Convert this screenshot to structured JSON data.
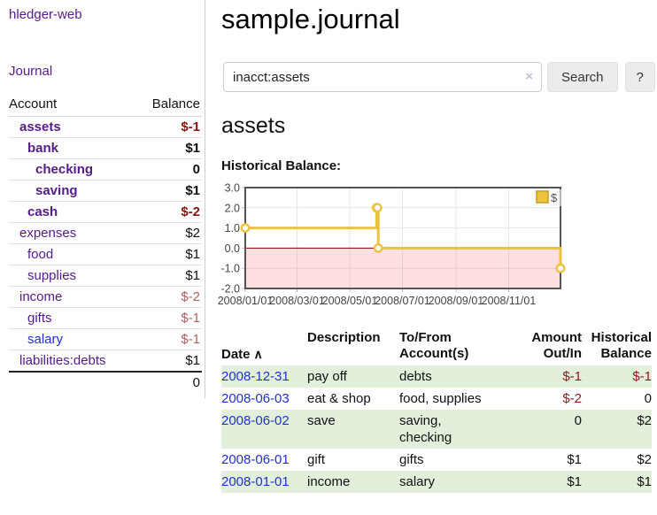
{
  "colors": {
    "accent_purple": "#551a8b",
    "link_blue": "#2230cf",
    "negative_strong": "#8b1515",
    "negative_soft": "#b26161",
    "row_stripe_green": "#e2efdb",
    "chart_line_yellow": "#edc240",
    "chart_negative_fill": "rgba(255,0,0,0.12)",
    "chart_zero_line": "#8b0000",
    "chart_border": "#545454"
  },
  "sidebar": {
    "brand": "hledger-web",
    "journal_link": "Journal",
    "accounts_table": {
      "headers": [
        "Account",
        "Balance"
      ],
      "rows": [
        {
          "name": "assets",
          "indent": 1,
          "bold": true,
          "balance": "$-1",
          "negative": "strong"
        },
        {
          "name": "bank",
          "indent": 2,
          "bold": true,
          "balance": "$1"
        },
        {
          "name": "checking",
          "indent": 3,
          "bold": true,
          "balance": "0"
        },
        {
          "name": "saving",
          "indent": 3,
          "bold": true,
          "balance": "$1"
        },
        {
          "name": "cash",
          "indent": 2,
          "bold": true,
          "balance": "$-2",
          "negative": "strong"
        },
        {
          "name": "expenses",
          "indent": 1,
          "bold": false,
          "balance": "$2"
        },
        {
          "name": "food",
          "indent": 2,
          "bold": false,
          "balance": "$1"
        },
        {
          "name": "supplies",
          "indent": 2,
          "bold": false,
          "balance": "$1"
        },
        {
          "name": "income",
          "indent": 1,
          "bold": false,
          "balance": "$-2",
          "negative": "soft"
        },
        {
          "name": "gifts",
          "indent": 2,
          "bold": false,
          "balance": "$-1",
          "negative": "soft"
        },
        {
          "name": "salary",
          "indent": 2,
          "bold": false,
          "balance": "$-1",
          "negative": "soft",
          "link_style": "unvisited"
        },
        {
          "name": "liabilities:debts",
          "indent": 1,
          "bold": false,
          "balance": "$1"
        }
      ],
      "total": "0"
    }
  },
  "header": {
    "title": "sample.journal"
  },
  "search": {
    "query": "inacct:assets",
    "clear_icon": "×",
    "search_button": "Search",
    "help_button": "?"
  },
  "main": {
    "account_heading": "assets",
    "chart_label": "Historical Balance:"
  },
  "chart_data": {
    "type": "line",
    "style": "step",
    "title": "Historical Balance",
    "series": [
      {
        "name": "$",
        "color": "#edc240",
        "points": [
          [
            "2008-01-01",
            1
          ],
          [
            "2008-06-01",
            2
          ],
          [
            "2008-06-02",
            2
          ],
          [
            "2008-06-03",
            0
          ],
          [
            "2008-12-31",
            -1
          ]
        ]
      }
    ],
    "xlim": [
      "2008-01-01",
      "2008-12-31"
    ],
    "ylim": [
      -2,
      3
    ],
    "x_ticks": [
      "2008/01/01",
      "2008/03/01",
      "2008/05/01",
      "2008/07/01",
      "2008/09/01",
      "2008/11/01"
    ],
    "y_ticks": [
      3.0,
      2.0,
      1.0,
      0.0,
      -1.0,
      -2.0
    ],
    "grid": true,
    "legend": {
      "label": "$",
      "position": "top-right"
    },
    "negative_region_shaded": true
  },
  "register": {
    "headers": [
      "Date",
      "Description",
      "To/From\nAccount(s)",
      "Amount\nOut/In",
      "Historical\nBalance"
    ],
    "sort_icon": "∧",
    "rows": [
      {
        "date": "2008-12-31",
        "description": "pay off",
        "accounts": "debts",
        "amount": "$-1",
        "amount_negative": true,
        "balance": "$-1",
        "balance_negative": true
      },
      {
        "date": "2008-06-03",
        "description": "eat & shop",
        "accounts": "food, supplies",
        "amount": "$-2",
        "amount_negative": true,
        "balance": "0",
        "balance_negative": false
      },
      {
        "date": "2008-06-02",
        "description": "save",
        "accounts": "saving,\nchecking",
        "amount": "0",
        "amount_negative": false,
        "balance": "$2",
        "balance_negative": false
      },
      {
        "date": "2008-06-01",
        "description": "gift",
        "accounts": "gifts",
        "amount": "$1",
        "amount_negative": false,
        "balance": "$2",
        "balance_negative": false
      },
      {
        "date": "2008-01-01",
        "description": "income",
        "accounts": "salary",
        "amount": "$1",
        "amount_negative": false,
        "balance": "$1",
        "balance_negative": false
      }
    ]
  }
}
